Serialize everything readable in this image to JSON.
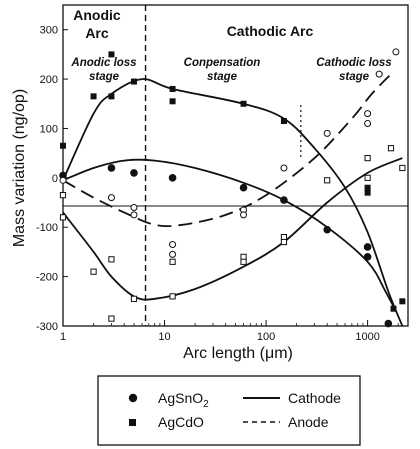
{
  "chart_data": {
    "type": "scatter",
    "xscale": "log",
    "xlim": [
      1,
      2500
    ],
    "ylim": [
      -300,
      350
    ],
    "xlabel": "Arc length (μm)",
    "ylabel": "Mass variation (ng/op)",
    "xticks": [
      {
        "value": 1,
        "label": "1"
      },
      {
        "value": 10,
        "label": "10"
      },
      {
        "value": 100,
        "label": "100"
      },
      {
        "value": 1000,
        "label": "1000"
      }
    ],
    "yticks": [
      {
        "value": 300,
        "label": "300"
      },
      {
        "value": 200,
        "label": "200"
      },
      {
        "value": 100,
        "label": "100"
      },
      {
        "value": 0,
        "label": "0"
      },
      {
        "value": -100,
        "label": "-100"
      },
      {
        "value": -200,
        "label": "-200"
      },
      {
        "value": -300,
        "label": "-300"
      }
    ],
    "regions": [
      {
        "title_line1": "Anodic",
        "title_line2": "Arc",
        "stage_line1": "Anodic loss",
        "stage_line2": "stage"
      },
      {
        "title_line1": "Cathodic Arc",
        "title_line2": ""
      },
      {
        "stage_line1": "Conpensation",
        "stage_line2": "stage"
      },
      {
        "stage_line1": "Cathodic loss",
        "stage_line2": "stage"
      }
    ],
    "boundary_x": 6.5,
    "stage_boundary_x": 220,
    "series": [
      {
        "name": "AgSnO2 cathode",
        "marker": "filled-circle",
        "points": [
          [
            1,
            5
          ],
          [
            3,
            20
          ],
          [
            5,
            10
          ],
          [
            12,
            0
          ],
          [
            60,
            -20
          ],
          [
            150,
            -45
          ],
          [
            400,
            -105
          ],
          [
            1000,
            -140
          ],
          [
            1000,
            -160
          ],
          [
            1600,
            -295
          ]
        ]
      },
      {
        "name": "AgCdO cathode",
        "marker": "filled-square",
        "points": [
          [
            1,
            65
          ],
          [
            2,
            165
          ],
          [
            3,
            250
          ],
          [
            3,
            165
          ],
          [
            5,
            195
          ],
          [
            12,
            180
          ],
          [
            12,
            155
          ],
          [
            60,
            150
          ],
          [
            150,
            115
          ],
          [
            1000,
            -20
          ],
          [
            1000,
            -30
          ],
          [
            1800,
            -265
          ],
          [
            2200,
            -250
          ]
        ]
      },
      {
        "name": "AgSnO2 anode",
        "marker": "open-circle",
        "points": [
          [
            1,
            -5
          ],
          [
            3,
            -40
          ],
          [
            5,
            -60
          ],
          [
            5,
            -75
          ],
          [
            12,
            -135
          ],
          [
            12,
            -155
          ],
          [
            60,
            -65
          ],
          [
            60,
            -75
          ],
          [
            150,
            20
          ],
          [
            400,
            90
          ],
          [
            1000,
            110
          ],
          [
            1000,
            130
          ],
          [
            1300,
            210
          ],
          [
            1900,
            255
          ]
        ]
      },
      {
        "name": "AgCdO anode",
        "marker": "open-square",
        "points": [
          [
            1,
            -35
          ],
          [
            1,
            -80
          ],
          [
            2,
            -190
          ],
          [
            3,
            -165
          ],
          [
            3,
            -285
          ],
          [
            5,
            -245
          ],
          [
            12,
            -170
          ],
          [
            12,
            -240
          ],
          [
            60,
            -160
          ],
          [
            60,
            -170
          ],
          [
            150,
            -120
          ],
          [
            150,
            -130
          ],
          [
            400,
            -5
          ],
          [
            1000,
            40
          ],
          [
            1000,
            0
          ],
          [
            1700,
            60
          ],
          [
            2200,
            20
          ]
        ]
      }
    ],
    "curves": [
      {
        "style": "solid",
        "points": [
          [
            1,
            -5
          ],
          [
            2,
            130
          ],
          [
            3,
            170
          ],
          [
            6,
            200
          ],
          [
            12,
            180
          ],
          [
            60,
            150
          ],
          [
            150,
            120
          ],
          [
            300,
            60
          ],
          [
            600,
            -20
          ],
          [
            1000,
            -110
          ],
          [
            1600,
            -230
          ],
          [
            2200,
            -300
          ]
        ]
      },
      {
        "style": "solid",
        "points": [
          [
            1,
            -5
          ],
          [
            2,
            20
          ],
          [
            4,
            35
          ],
          [
            8,
            35
          ],
          [
            20,
            20
          ],
          [
            60,
            -10
          ],
          [
            150,
            -45
          ],
          [
            400,
            -100
          ],
          [
            1000,
            -170
          ],
          [
            1500,
            -230
          ],
          [
            1900,
            -270
          ]
        ]
      },
      {
        "style": "solid",
        "points": [
          [
            1,
            -70
          ],
          [
            2,
            -150
          ],
          [
            3,
            -200
          ],
          [
            5,
            -240
          ],
          [
            8,
            -245
          ],
          [
            20,
            -225
          ],
          [
            60,
            -180
          ],
          [
            150,
            -130
          ],
          [
            400,
            -50
          ],
          [
            1000,
            10
          ],
          [
            2200,
            40
          ]
        ]
      },
      {
        "style": "dashed",
        "points": [
          [
            1,
            -5
          ],
          [
            2,
            -40
          ],
          [
            4,
            -70
          ],
          [
            8,
            -95
          ],
          [
            15,
            -95
          ],
          [
            40,
            -75
          ],
          [
            100,
            -35
          ],
          [
            300,
            40
          ],
          [
            700,
            120
          ],
          [
            1100,
            170
          ],
          [
            1700,
            210
          ]
        ]
      }
    ],
    "legend": [
      {
        "marker": "filled-circle",
        "label": "AgSnO",
        "sub": "2"
      },
      {
        "marker": "filled-square",
        "label": "AgCdO",
        "sub": ""
      },
      {
        "line": "solid",
        "label": "Cathode"
      },
      {
        "line": "dashed",
        "label": "Anode"
      }
    ]
  },
  "colors": {
    "ink": "#111111",
    "background": "#ffffff"
  }
}
